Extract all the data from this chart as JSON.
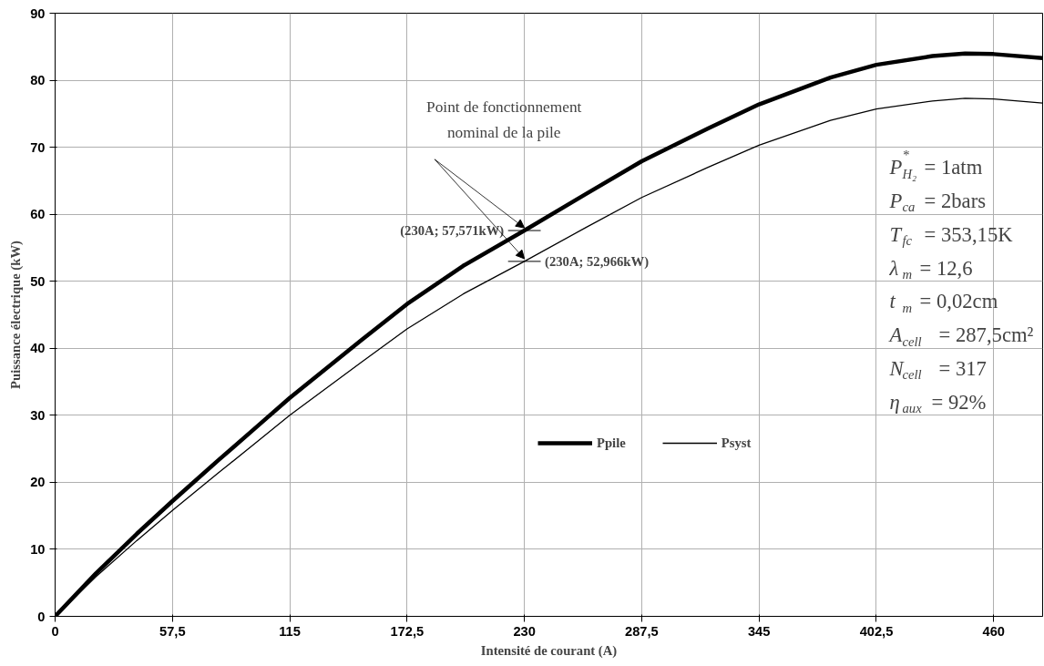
{
  "chart_data": {
    "type": "line",
    "xlabel": "Intensité de courant (A)",
    "ylabel": "Puissance électrique (kW)",
    "x": [
      0,
      20,
      40,
      57.5,
      80,
      100,
      115,
      150,
      172.5,
      200,
      230,
      260,
      287.5,
      320,
      345,
      380,
      402.5,
      430,
      446,
      460,
      484
    ],
    "series": [
      {
        "name": "Ppile",
        "color": "#000000",
        "values": [
          0,
          6.4,
          12.3,
          17.2,
          23.3,
          28.6,
          32.6,
          41.2,
          46.6,
          52.3,
          57.571,
          63.0,
          67.9,
          72.8,
          76.4,
          80.4,
          82.3,
          83.6,
          84.0,
          83.9,
          83.3
        ]
      },
      {
        "name": "Psyst",
        "color": "#000000",
        "values": [
          0,
          5.9,
          11.3,
          15.8,
          21.4,
          26.3,
          30.0,
          37.9,
          42.9,
          48.1,
          52.966,
          58.0,
          62.5,
          67.0,
          70.3,
          74.0,
          75.7,
          76.9,
          77.3,
          77.2,
          76.6
        ]
      }
    ],
    "xlim": [
      0,
      484
    ],
    "ylim": [
      0,
      90
    ],
    "xticks": [
      0,
      {
        "value": 57.5,
        "label": "57,5"
      },
      115,
      {
        "value": 172.5,
        "label": "172,5"
      },
      230,
      {
        "value": 287.5,
        "label": "287,5"
      },
      345,
      {
        "value": 402.5,
        "label": "402,5"
      },
      460
    ],
    "yticks": [
      0,
      10,
      20,
      30,
      40,
      50,
      60,
      70,
      80,
      90
    ],
    "grid": true,
    "legend": "right",
    "marker": "none",
    "line_style": "solid",
    "annotations": [
      {
        "text": "(230A; 57,571kW)",
        "x": 230,
        "y": 57.571
      },
      {
        "text": "(230A; 52,966kW)",
        "x": 230,
        "y": 52.966
      },
      "Point de fonctionnement nominal de la pile",
      "P$_{H₂}$$^{*}$ = 1atm",
      "P$_{ca}$ = 2bars",
      "T$_{fc}$ = 353,15K",
      "λ$_{m}$ = 12,6",
      "t$_{m}$ = 0,02cm",
      "A$_{cell}$ = 287,5cm²",
      "N$_{cell}$ = 317",
      "η$_{aux}$ = 92%"
    ]
  }
}
